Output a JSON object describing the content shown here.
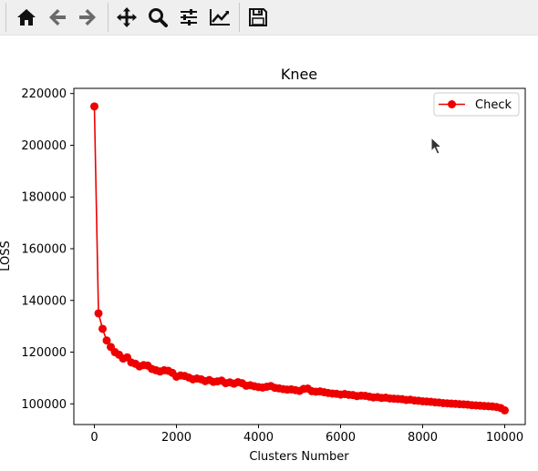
{
  "toolbar": {
    "buttons": [
      {
        "name": "home-button",
        "icon": "home-icon"
      },
      {
        "name": "back-button",
        "icon": "arrow-left-icon"
      },
      {
        "name": "forward-button",
        "icon": "arrow-right-icon"
      },
      {
        "name": "pan-button",
        "icon": "move-icon"
      },
      {
        "name": "zoom-button",
        "icon": "zoom-icon"
      },
      {
        "name": "configure-subplots-button",
        "icon": "sliders-icon"
      },
      {
        "name": "edit-axis-button",
        "icon": "chart-line-icon"
      },
      {
        "name": "save-button",
        "icon": "floppy-disk-icon"
      }
    ]
  },
  "colors": {
    "series": "#ee0000",
    "toolbar_bg": "#efefef",
    "icon": "#111111",
    "icon_disabled": "#6a6a6a"
  },
  "chart_data": {
    "type": "line",
    "title": "Knee",
    "xlabel": "Clusters Number",
    "ylabel": "LOSS",
    "xlim": [
      -500,
      10500
    ],
    "ylim": [
      92000,
      222000
    ],
    "xticks": [
      0,
      2000,
      4000,
      6000,
      8000,
      10000
    ],
    "yticks": [
      100000,
      120000,
      140000,
      160000,
      180000,
      200000,
      220000
    ],
    "legend_position": "top-right",
    "grid": false,
    "series": [
      {
        "name": "Check",
        "marker": "circle",
        "x": [
          0,
          100,
          200,
          300,
          400,
          500,
          600,
          700,
          800,
          900,
          1000,
          1100,
          1200,
          1300,
          1400,
          1500,
          1600,
          1700,
          1800,
          1900,
          2000,
          2100,
          2200,
          2300,
          2400,
          2500,
          2600,
          2700,
          2800,
          2900,
          3000,
          3100,
          3200,
          3300,
          3400,
          3500,
          3600,
          3700,
          3800,
          3900,
          4000,
          4100,
          4200,
          4300,
          4400,
          4500,
          4600,
          4700,
          4800,
          4900,
          5000,
          5100,
          5200,
          5300,
          5400,
          5500,
          5600,
          5700,
          5800,
          5900,
          6000,
          6100,
          6200,
          6300,
          6400,
          6500,
          6600,
          6700,
          6800,
          6900,
          7000,
          7100,
          7200,
          7300,
          7400,
          7500,
          7600,
          7700,
          7800,
          7900,
          8000,
          8100,
          8200,
          8300,
          8400,
          8500,
          8600,
          8700,
          8800,
          8900,
          9000,
          9100,
          9200,
          9300,
          9400,
          9500,
          9600,
          9700,
          9800,
          9900,
          10000
        ],
        "y": [
          215000,
          135000,
          129000,
          124500,
          122000,
          120000,
          119000,
          117500,
          118000,
          116000,
          115500,
          114500,
          115000,
          114800,
          113500,
          113000,
          112500,
          113000,
          112800,
          112000,
          110500,
          111000,
          110800,
          110200,
          109500,
          109800,
          109500,
          108800,
          109200,
          108500,
          108700,
          109000,
          108000,
          108300,
          107800,
          108400,
          108000,
          107000,
          107200,
          106800,
          106500,
          106300,
          106600,
          106900,
          106200,
          106000,
          105700,
          105500,
          105600,
          105300,
          105000,
          105800,
          105900,
          104900,
          104700,
          104800,
          104500,
          104200,
          104000,
          103900,
          103600,
          103800,
          103500,
          103400,
          103000,
          103200,
          103100,
          102800,
          102500,
          102600,
          102300,
          102400,
          102100,
          102000,
          101900,
          101800,
          101500,
          101600,
          101300,
          101200,
          101000,
          100900,
          100800,
          100600,
          100500,
          100300,
          100200,
          100100,
          100000,
          99900,
          99800,
          99700,
          99500,
          99400,
          99300,
          99200,
          99100,
          99000,
          98800,
          98400,
          97500
        ]
      }
    ]
  }
}
